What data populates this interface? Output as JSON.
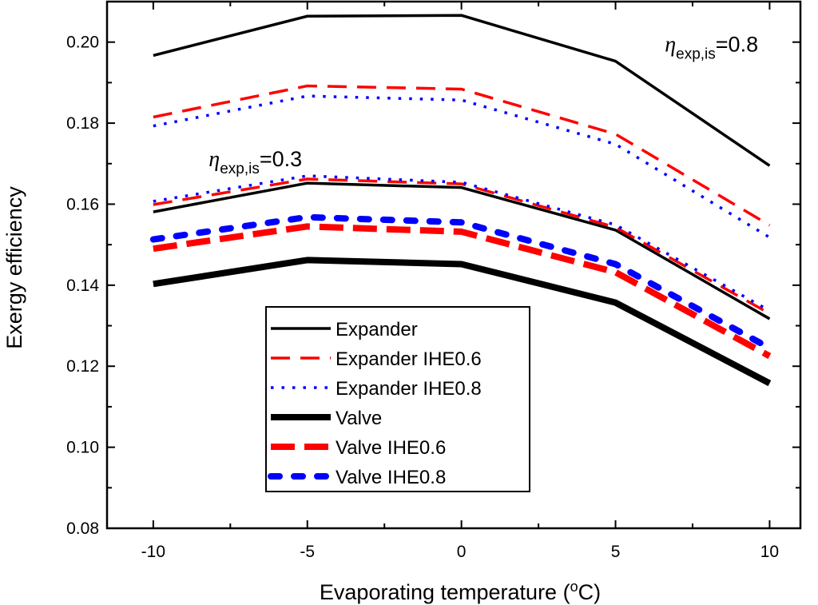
{
  "chart_data": {
    "type": "line",
    "title": "",
    "xlabel": "Evaporating temperature (",
    "xlabel_sup": "o",
    "xlabel_tail": "C)",
    "ylabel": "Exergy efficiency",
    "x": [
      -10,
      -5,
      0,
      5,
      10
    ],
    "x_tick_labels": [
      "-10",
      "-5",
      "0",
      "5",
      "10"
    ],
    "y_tick_labels": [
      "0.08",
      "0.10",
      "0.12",
      "0.14",
      "0.16",
      "0.18",
      "0.20"
    ],
    "xlim": [
      -11.5,
      11
    ],
    "ylim": [
      0.08,
      0.21
    ],
    "series": [
      {
        "name": "Expander",
        "values": [
          0.1967,
          0.2064,
          0.2066,
          0.1953,
          0.1695
        ],
        "color": "#000000",
        "style": "solid-thin"
      },
      {
        "name": "Expander IHE0.6",
        "values": [
          0.1815,
          0.1892,
          0.1884,
          0.1773,
          0.1548
        ],
        "color": "#ff0000",
        "style": "dash"
      },
      {
        "name": "Expander IHE0.8",
        "values": [
          0.1793,
          0.1867,
          0.1857,
          0.1748,
          0.1518
        ],
        "color": "#0000ff",
        "style": "dot"
      },
      {
        "name": "Valve",
        "values": [
          0.1403,
          0.1462,
          0.1452,
          0.1357,
          0.1158
        ],
        "color": "#000000",
        "style": "solid-thick"
      },
      {
        "name": "Valve IHE0.6",
        "values": [
          0.149,
          0.1545,
          0.1532,
          0.1432,
          0.1225
        ],
        "color": "#ff0000",
        "style": "dash-thick"
      },
      {
        "name": "Valve IHE0.8",
        "values": [
          0.1513,
          0.1568,
          0.1555,
          0.1452,
          0.1245
        ],
        "color": "#0000ff",
        "style": "dashdot-thick"
      },
      {
        "name": "Expander (η = 0.3)",
        "values": [
          0.1581,
          0.1652,
          0.1641,
          0.1536,
          0.1317
        ],
        "color": "#000000",
        "style": "solid-thin",
        "in_legend": false
      },
      {
        "name": "Expander IHE0.6 (η = 0.3)",
        "values": [
          0.1599,
          0.1662,
          0.165,
          0.1543,
          0.133
        ],
        "color": "#ff0000",
        "style": "dash",
        "in_legend": false
      },
      {
        "name": "Expander IHE0.8 (η = 0.3)",
        "values": [
          0.1607,
          0.167,
          0.1654,
          0.1549,
          0.1337
        ],
        "color": "#0000ff",
        "style": "dot",
        "in_legend": false
      }
    ],
    "legend_position": "lower-center",
    "annotations": [
      {
        "symbol": "η",
        "subscript": "exp,is",
        "text": "=0.8",
        "x": 6.6,
        "y": 0.1977
      },
      {
        "symbol": "η",
        "subscript": "exp,is",
        "text": "=0.3",
        "x": -8.2,
        "y": 0.1694
      }
    ]
  }
}
